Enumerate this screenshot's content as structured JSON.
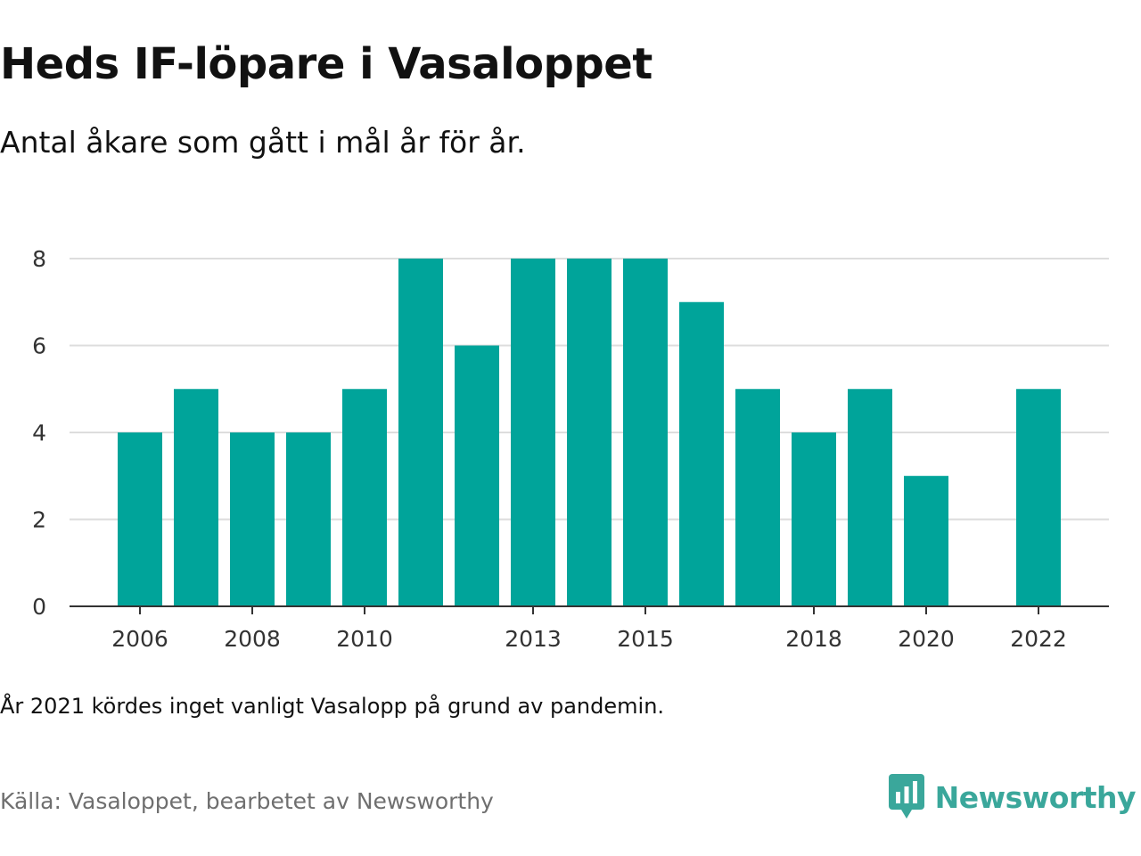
{
  "header": {
    "title": "Heds IF-löpare i Vasaloppet",
    "subtitle": "Antal åkare som gått i mål år för år."
  },
  "footer": {
    "note": "År 2021 kördes inget vanligt Vasalopp på grund av pandemin.",
    "source": "Källa: Vasaloppet, bearbetet av Newsworthy",
    "logo_text": "Newsworthy",
    "logo_icon": "newsworthy-logo-icon"
  },
  "colors": {
    "bar": "#00a49a",
    "grid": "#dddddd",
    "axis": "#333333",
    "brand": "#3aa79b"
  },
  "chart_data": {
    "type": "bar",
    "title": "Heds IF-löpare i Vasaloppet",
    "subtitle": "Antal åkare som gått i mål år för år.",
    "xlabel": "",
    "ylabel": "",
    "categories": [
      "2006",
      "2007",
      "2008",
      "2009",
      "2010",
      "2011",
      "2012",
      "2013",
      "2014",
      "2015",
      "2016",
      "2017",
      "2018",
      "2019",
      "2020",
      "2021",
      "2022"
    ],
    "values": [
      4,
      5,
      4,
      4,
      5,
      8,
      6,
      8,
      8,
      8,
      7,
      5,
      4,
      5,
      3,
      null,
      5
    ],
    "x_tick_labels": [
      "2006",
      "2008",
      "2010",
      "2013",
      "2015",
      "2018",
      "2020",
      "2022"
    ],
    "y_ticks": [
      0,
      2,
      4,
      6,
      8
    ],
    "ylim": [
      0,
      8
    ],
    "grid": true,
    "legend": false
  }
}
